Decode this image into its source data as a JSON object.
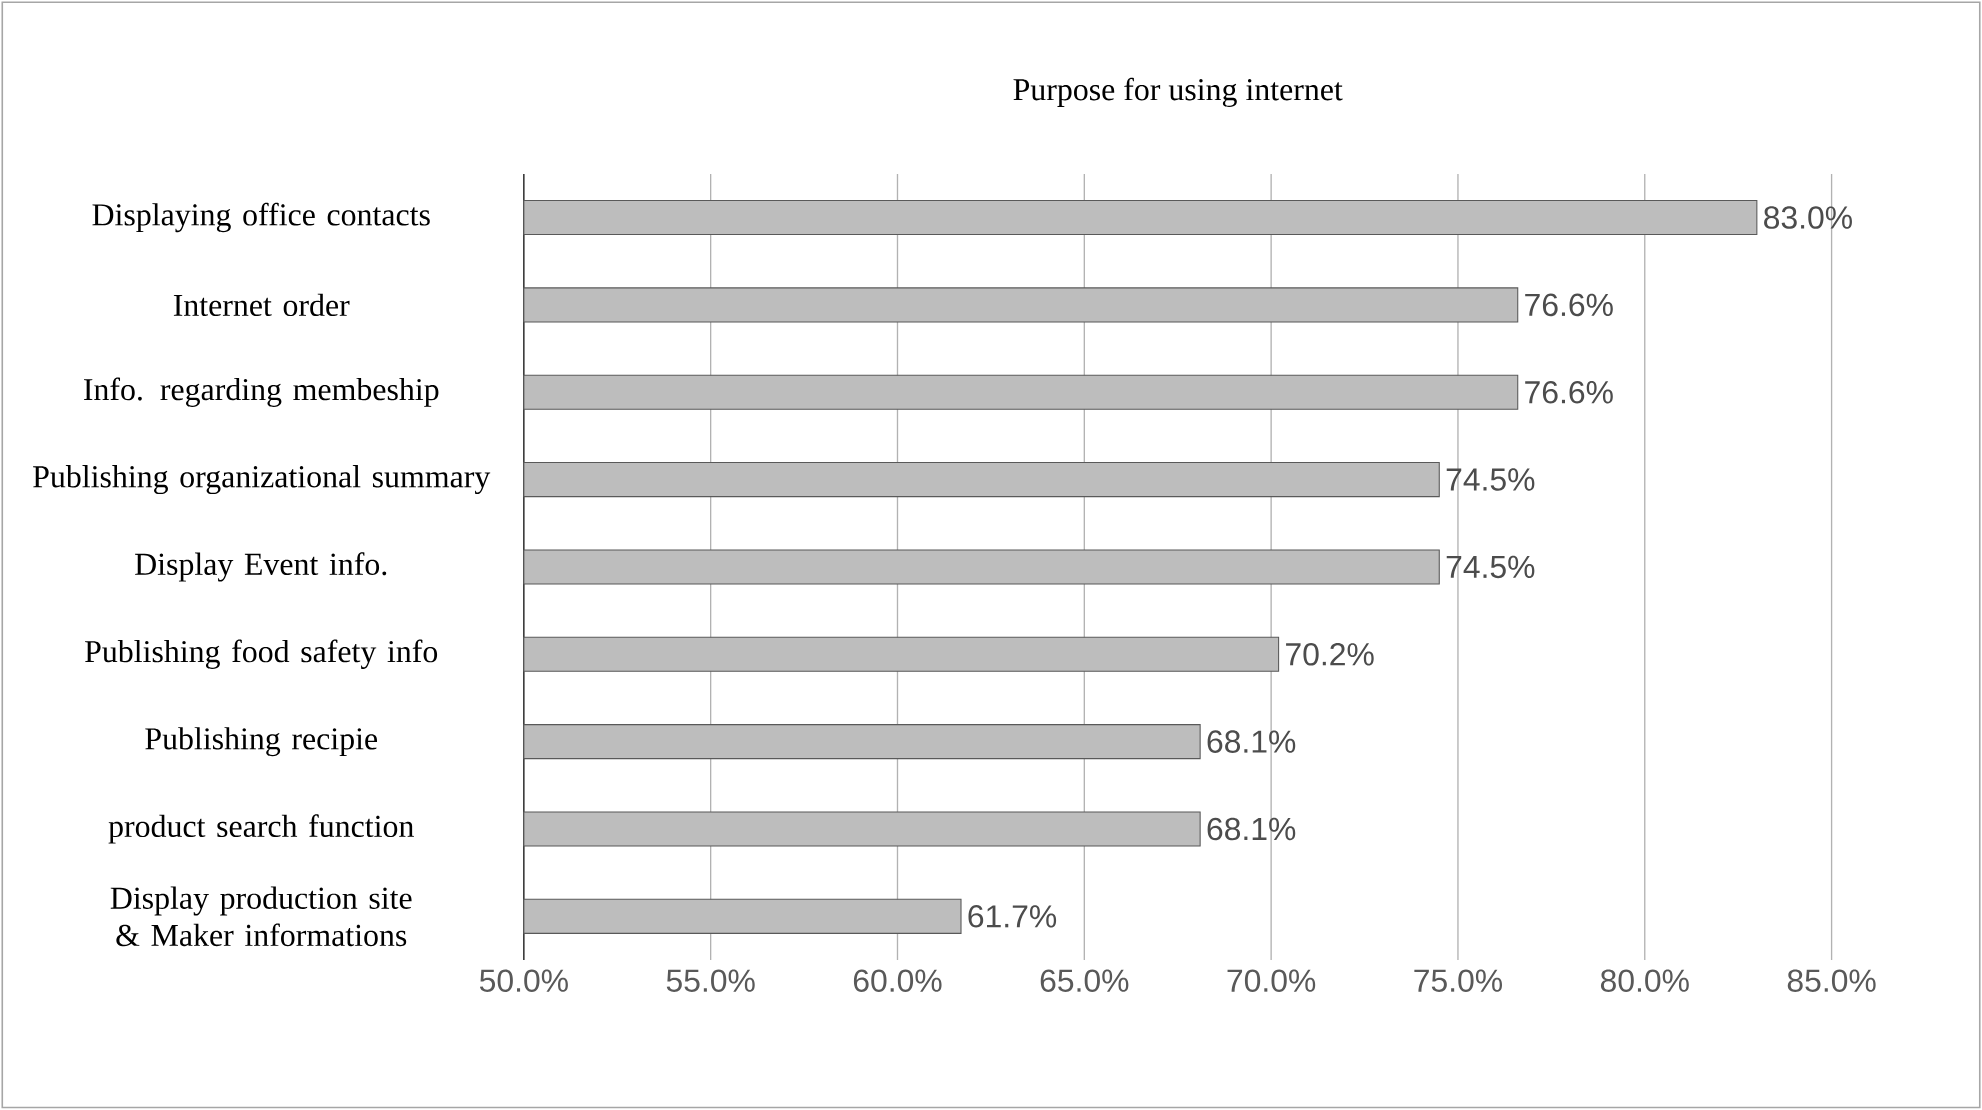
{
  "chart_data": {
    "type": "bar",
    "orientation": "horizontal",
    "title": "Purpose for using internet",
    "categories": [
      "Displaying office contacts",
      "Internet order",
      "Info. regarding membeship",
      "Publishing organizational summary",
      "Display Event info.",
      "Publishing food safety info",
      "Publishing recipie",
      "product search function",
      "Display production site & Maker informations"
    ],
    "values": [
      83.0,
      76.6,
      76.6,
      74.5,
      74.5,
      70.2,
      68.1,
      68.1,
      61.7
    ],
    "value_labels": [
      "83.0%",
      "76.6%",
      "76.6%",
      "74.5%",
      "74.5%",
      "70.2%",
      "68.1%",
      "68.1%",
      "61.7%"
    ],
    "color": "#bdbdbd",
    "xlim": [
      50,
      85
    ],
    "xticks": [
      {
        "value": 50,
        "label": "50.0%"
      },
      {
        "value": 55,
        "label": "55.0%"
      },
      {
        "value": 60,
        "label": "60.0%"
      },
      {
        "value": 65,
        "label": "65.0%"
      },
      {
        "value": 70,
        "label": "70.0%"
      },
      {
        "value": 75,
        "label": "75.0%"
      },
      {
        "value": 80,
        "label": "80.0%"
      },
      {
        "value": 85,
        "label": "85.0%"
      }
    ],
    "grid": "x"
  }
}
